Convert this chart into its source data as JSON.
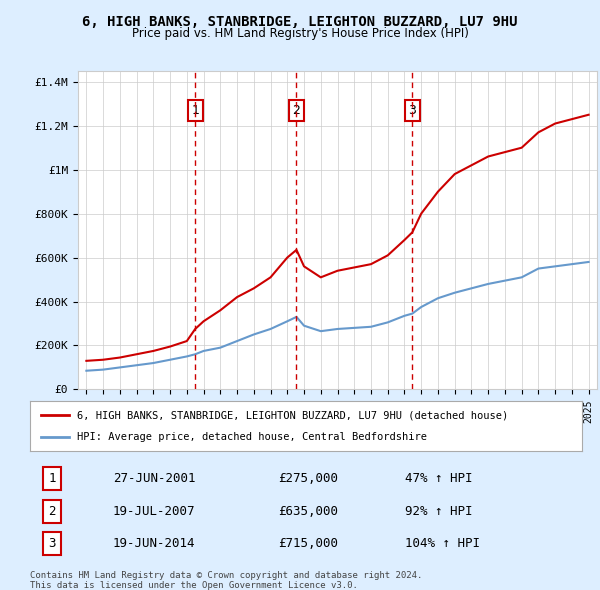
{
  "title": "6, HIGH BANKS, STANBRIDGE, LEIGHTON BUZZARD, LU7 9HU",
  "subtitle": "Price paid vs. HM Land Registry's House Price Index (HPI)",
  "legend_line1": "6, HIGH BANKS, STANBRIDGE, LEIGHTON BUZZARD, LU7 9HU (detached house)",
  "legend_line2": "HPI: Average price, detached house, Central Bedfordshire",
  "footer1": "Contains HM Land Registry data © Crown copyright and database right 2024.",
  "footer2": "This data is licensed under the Open Government Licence v3.0.",
  "sale_labels": [
    "1",
    "2",
    "3"
  ],
  "sale_dates": [
    "27-JUN-2001",
    "19-JUL-2007",
    "19-JUN-2014"
  ],
  "sale_prices": [
    275000,
    635000,
    715000
  ],
  "sale_hpi_pct": [
    "47% ↑ HPI",
    "92% ↑ HPI",
    "104% ↑ HPI"
  ],
  "sale_years": [
    2001.5,
    2007.55,
    2014.47
  ],
  "ylim": [
    0,
    1450000
  ],
  "xlim": [
    1994.5,
    2025.5
  ],
  "yticks": [
    0,
    200000,
    400000,
    600000,
    800000,
    1000000,
    1200000,
    1400000
  ],
  "ytick_labels": [
    "£0",
    "£200K",
    "£400K",
    "£600K",
    "£800K",
    "£1M",
    "£1.2M",
    "£1.4M"
  ],
  "red_color": "#cc0000",
  "blue_color": "#6699cc",
  "background_color": "#ddeeff",
  "plot_bg_color": "#ffffff",
  "grid_color": "#cccccc",
  "hpi_years": [
    1995,
    1996,
    1997,
    1998,
    1999,
    2000,
    2001,
    2001.5,
    2002,
    2003,
    2004,
    2005,
    2006,
    2007,
    2007.55,
    2008,
    2009,
    2010,
    2011,
    2012,
    2013,
    2014,
    2014.47,
    2015,
    2016,
    2017,
    2018,
    2019,
    2020,
    2021,
    2022,
    2023,
    2024,
    2025
  ],
  "hpi_values": [
    85000,
    90000,
    100000,
    110000,
    120000,
    135000,
    150000,
    160000,
    175000,
    190000,
    220000,
    250000,
    275000,
    310000,
    330000,
    290000,
    265000,
    275000,
    280000,
    285000,
    305000,
    335000,
    345000,
    375000,
    415000,
    440000,
    460000,
    480000,
    495000,
    510000,
    550000,
    560000,
    570000,
    580000
  ],
  "red_years": [
    1995,
    1996,
    1997,
    1998,
    1999,
    2000,
    2001,
    2001.5,
    2002,
    2003,
    2004,
    2005,
    2006,
    2007,
    2007.55,
    2008,
    2009,
    2010,
    2011,
    2012,
    2013,
    2014,
    2014.47,
    2015,
    2016,
    2017,
    2018,
    2019,
    2020,
    2021,
    2022,
    2023,
    2024,
    2025
  ],
  "red_values": [
    130000,
    135000,
    145000,
    160000,
    175000,
    195000,
    220000,
    275000,
    310000,
    360000,
    420000,
    460000,
    510000,
    600000,
    635000,
    560000,
    510000,
    540000,
    555000,
    570000,
    610000,
    680000,
    715000,
    800000,
    900000,
    980000,
    1020000,
    1060000,
    1080000,
    1100000,
    1170000,
    1210000,
    1230000,
    1250000
  ]
}
